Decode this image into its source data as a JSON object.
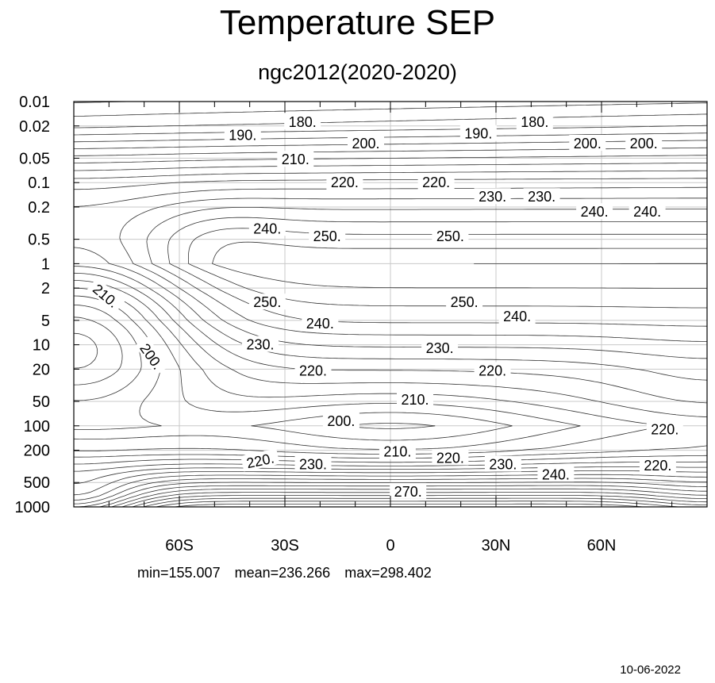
{
  "header": {
    "title": "Temperature SEP",
    "subtitle": "ngc2012(2020-2020)"
  },
  "stats": {
    "min": "min=155.007",
    "mean": "mean=236.266",
    "max": "max=298.402"
  },
  "footer": {
    "date": "10-06-2022"
  },
  "chart_data": {
    "type": "contour",
    "title": "Temperature SEP",
    "subtitle": "ngc2012(2020-2020)",
    "x_ticks": [
      {
        "value": -60,
        "label": "60S"
      },
      {
        "value": -30,
        "label": "30S"
      },
      {
        "value": 0,
        "label": "0"
      },
      {
        "value": 30,
        "label": "30N"
      },
      {
        "value": 60,
        "label": "60N"
      }
    ],
    "xlim": [
      -90,
      90
    ],
    "y_ticks": [
      {
        "value": 0.01,
        "label": "0.01"
      },
      {
        "value": 0.02,
        "label": "0.02"
      },
      {
        "value": 0.05,
        "label": "0.05"
      },
      {
        "value": 0.1,
        "label": "0.1"
      },
      {
        "value": 0.2,
        "label": "0.2"
      },
      {
        "value": 0.5,
        "label": "0.5"
      },
      {
        "value": 1,
        "label": "1"
      },
      {
        "value": 2,
        "label": "2"
      },
      {
        "value": 5,
        "label": "5"
      },
      {
        "value": 10,
        "label": "10"
      },
      {
        "value": 20,
        "label": "20"
      },
      {
        "value": 50,
        "label": "50"
      },
      {
        "value": 100,
        "label": "100"
      },
      {
        "value": 200,
        "label": "200"
      },
      {
        "value": 500,
        "label": "500"
      },
      {
        "value": 1000,
        "label": "1000"
      }
    ],
    "ylim": [
      0.01,
      1000
    ],
    "y_scale": "log",
    "y_inverted": true,
    "grid": true,
    "contour_interval": 5,
    "contour_labels": [
      {
        "text": "180.",
        "lat": -25,
        "p": 0.018
      },
      {
        "text": "180.",
        "lat": 41,
        "p": 0.018
      },
      {
        "text": "190.",
        "lat": -42,
        "p": 0.026
      },
      {
        "text": "190.",
        "lat": 25,
        "p": 0.025
      },
      {
        "text": "200.",
        "lat": -7,
        "p": 0.033
      },
      {
        "text": "200.",
        "lat": 56,
        "p": 0.033
      },
      {
        "text": "200.",
        "lat": 72,
        "p": 0.033
      },
      {
        "text": "210.",
        "lat": -27,
        "p": 0.052
      },
      {
        "text": "220.",
        "lat": -13,
        "p": 0.1
      },
      {
        "text": "220.",
        "lat": 13,
        "p": 0.1
      },
      {
        "text": "230.",
        "lat": 29,
        "p": 0.15
      },
      {
        "text": "230.",
        "lat": 43,
        "p": 0.15
      },
      {
        "text": "240.",
        "lat": -35,
        "p": 0.37
      },
      {
        "text": "240.",
        "lat": 58,
        "p": 0.23
      },
      {
        "text": "240.",
        "lat": 73,
        "p": 0.23
      },
      {
        "text": "250.",
        "lat": -18,
        "p": 0.46
      },
      {
        "text": "250.",
        "lat": 17,
        "p": 0.46
      },
      {
        "text": "210.",
        "lat": -81,
        "p": 2.5,
        "rotate": 40
      },
      {
        "text": "200.",
        "lat": -68,
        "p": 14,
        "rotate": 55
      },
      {
        "text": "250.",
        "lat": -35,
        "p": 3
      },
      {
        "text": "250.",
        "lat": 21,
        "p": 3
      },
      {
        "text": "240.",
        "lat": -20,
        "p": 5.5
      },
      {
        "text": "240.",
        "lat": 36,
        "p": 4.5
      },
      {
        "text": "230.",
        "lat": -37,
        "p": 10
      },
      {
        "text": "230.",
        "lat": 14,
        "p": 11
      },
      {
        "text": "220.",
        "lat": -22,
        "p": 21
      },
      {
        "text": "220.",
        "lat": 29,
        "p": 21
      },
      {
        "text": "210.",
        "lat": 7,
        "p": 48
      },
      {
        "text": "200.",
        "lat": -14,
        "p": 88
      },
      {
        "text": "220.",
        "lat": 78,
        "p": 111
      },
      {
        "text": "210.",
        "lat": 2,
        "p": 210
      },
      {
        "text": "220.",
        "lat": -37,
        "p": 270,
        "rotate": -12
      },
      {
        "text": "230.",
        "lat": -22,
        "p": 300
      },
      {
        "text": "220.",
        "lat": 17,
        "p": 250
      },
      {
        "text": "230.",
        "lat": 32,
        "p": 300
      },
      {
        "text": "240.",
        "lat": 47,
        "p": 400
      },
      {
        "text": "220.",
        "lat": 76,
        "p": 310
      },
      {
        "text": "270.",
        "lat": 5,
        "p": 650
      }
    ]
  }
}
